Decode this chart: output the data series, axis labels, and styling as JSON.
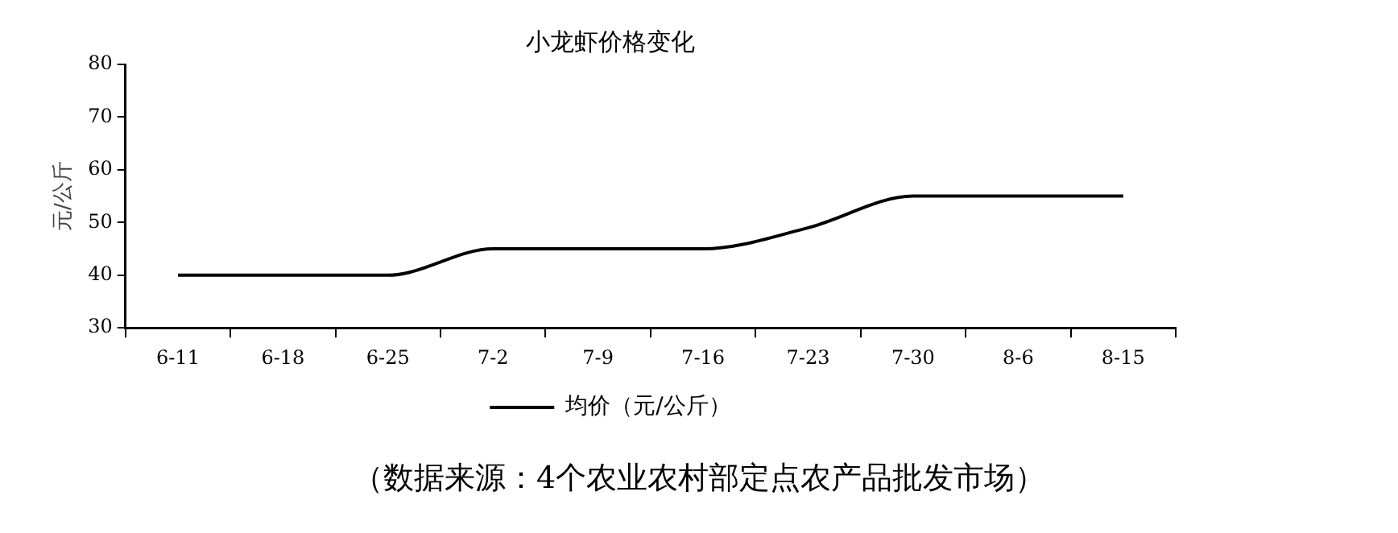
{
  "chart_data": {
    "type": "line",
    "title": "小龙虾价格变化",
    "ylabel": "元/公斤",
    "categories": [
      "6-11",
      "6-18",
      "6-25",
      "7-2",
      "7-9",
      "7-16",
      "7-23",
      "7-30",
      "8-6",
      "8-15"
    ],
    "series": [
      {
        "name": "均价（元/公斤）",
        "color": "#000000",
        "values": [
          40,
          40,
          40,
          45,
          45,
          45,
          49,
          55,
          55,
          55
        ]
      }
    ],
    "ylim": [
      30,
      80
    ],
    "yticks": [
      30,
      40,
      50,
      60,
      70,
      80
    ],
    "grid": false,
    "legend": "bottom",
    "marker": "none",
    "annotations": [
      "（数据来源：4个农业农村部定点农产品批发市场）"
    ]
  }
}
